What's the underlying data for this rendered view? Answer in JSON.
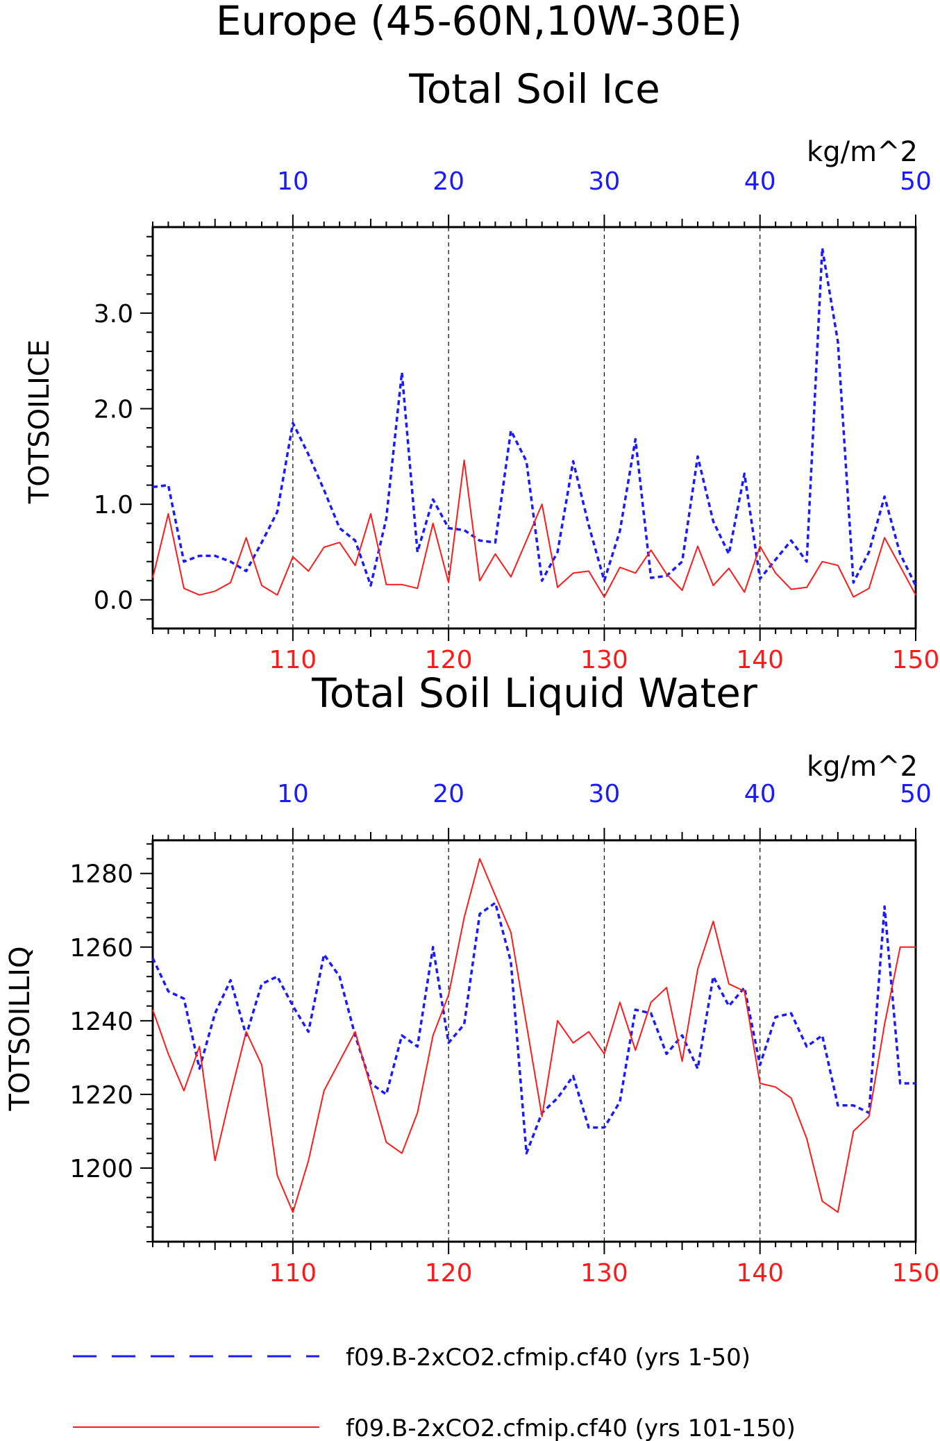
{
  "title_line1": "Europe (45-60N,10W-30E)",
  "colors": {
    "blue": "#1a1aff",
    "red": "#ff1a1a",
    "black": "#000000"
  },
  "legend": [
    {
      "label": "f09.B-2xCO2.cfmip.cf40 (yrs 1-50)",
      "color": "#1a1aff",
      "dash": "dashed"
    },
    {
      "label": "f09.B-2xCO2.cfmip.cf40 (yrs 101-150)",
      "color": "#ff1a1a",
      "dash": "solid"
    }
  ],
  "chart_data": [
    {
      "type": "line",
      "title": "Total Soil Ice",
      "units": "kg/m^2",
      "ylabel": "TOTSOILICE",
      "ylim": [
        -0.3,
        3.9
      ],
      "yticks": [
        "0.0",
        "1.0",
        "2.0",
        "3.0"
      ],
      "top_axis": {
        "range": [
          1,
          50
        ],
        "ticks": [
          "10",
          "20",
          "30",
          "40",
          "50"
        ]
      },
      "bottom_axis": {
        "range": [
          101,
          150
        ],
        "ticks": [
          "110",
          "120",
          "130",
          "140",
          "150"
        ]
      },
      "grid": "dashed vertical at 10,20,30,40",
      "series": [
        {
          "axis": "top",
          "x": [
            1,
            2,
            3,
            4,
            5,
            6,
            7,
            8,
            9,
            10,
            11,
            12,
            13,
            14,
            15,
            16,
            17,
            18,
            19,
            20,
            21,
            22,
            23,
            24,
            25,
            26,
            27,
            28,
            29,
            30,
            31,
            32,
            33,
            34,
            35,
            36,
            37,
            38,
            39,
            40,
            41,
            42,
            43,
            44,
            45,
            46,
            47,
            48,
            49,
            50
          ],
          "values": [
            1.18,
            1.2,
            0.4,
            0.46,
            0.46,
            0.4,
            0.3,
            0.6,
            0.92,
            1.85,
            1.52,
            1.15,
            0.75,
            0.62,
            0.15,
            0.85,
            2.38,
            0.5,
            1.05,
            0.75,
            0.73,
            0.62,
            0.6,
            1.77,
            1.45,
            0.2,
            0.5,
            1.45,
            0.78,
            0.2,
            0.72,
            1.68,
            0.23,
            0.25,
            0.4,
            1.5,
            0.82,
            0.48,
            1.32,
            0.22,
            0.42,
            0.62,
            0.4,
            3.68,
            2.7,
            0.18,
            0.5,
            1.08,
            0.48,
            0.15
          ]
        },
        {
          "axis": "bottom",
          "x": [
            101,
            102,
            103,
            104,
            105,
            106,
            107,
            108,
            109,
            110,
            111,
            112,
            113,
            114,
            115,
            116,
            117,
            118,
            119,
            120,
            121,
            122,
            123,
            124,
            125,
            126,
            127,
            128,
            129,
            130,
            131,
            132,
            133,
            134,
            135,
            136,
            137,
            138,
            139,
            140,
            141,
            142,
            143,
            144,
            145,
            146,
            147,
            148,
            149,
            150
          ],
          "values": [
            0.23,
            0.9,
            0.12,
            0.05,
            0.09,
            0.18,
            0.65,
            0.15,
            0.05,
            0.45,
            0.3,
            0.55,
            0.6,
            0.36,
            0.9,
            0.16,
            0.16,
            0.12,
            0.8,
            0.18,
            1.46,
            0.2,
            0.48,
            0.24,
            0.62,
            1.0,
            0.13,
            0.28,
            0.3,
            0.03,
            0.34,
            0.28,
            0.52,
            0.27,
            0.1,
            0.56,
            0.15,
            0.33,
            0.08,
            0.56,
            0.28,
            0.11,
            0.13,
            0.4,
            0.36,
            0.03,
            0.12,
            0.65,
            0.35,
            0.05
          ]
        }
      ]
    },
    {
      "type": "line",
      "title": "Total Soil Liquid Water",
      "units": "kg/m^2",
      "ylabel": "TOTSOILLIQ",
      "ylim": [
        1180,
        1289
      ],
      "yticks": [
        "1200",
        "1220",
        "1240",
        "1260",
        "1280"
      ],
      "top_axis": {
        "range": [
          1,
          50
        ],
        "ticks": [
          "10",
          "20",
          "30",
          "40",
          "50"
        ]
      },
      "bottom_axis": {
        "range": [
          101,
          150
        ],
        "ticks": [
          "110",
          "120",
          "130",
          "140",
          "150"
        ]
      },
      "grid": "dashed vertical at 10,20,30,40",
      "series": [
        {
          "axis": "top",
          "x": [
            1,
            2,
            3,
            4,
            5,
            6,
            7,
            8,
            9,
            10,
            11,
            12,
            13,
            14,
            15,
            16,
            17,
            18,
            19,
            20,
            21,
            22,
            23,
            24,
            25,
            26,
            27,
            28,
            29,
            30,
            31,
            32,
            33,
            34,
            35,
            36,
            37,
            38,
            39,
            40,
            41,
            42,
            43,
            44,
            45,
            46,
            47,
            48,
            49,
            50
          ],
          "values": [
            1257,
            1248,
            1246,
            1227,
            1242,
            1251,
            1236,
            1250,
            1252,
            1244,
            1237,
            1258,
            1252,
            1236,
            1223,
            1220,
            1236,
            1233,
            1260,
            1234,
            1239,
            1269,
            1272,
            1256,
            1204,
            1215,
            1219,
            1225,
            1211,
            1211,
            1218,
            1243,
            1242,
            1231,
            1236,
            1227,
            1252,
            1244,
            1249,
            1228,
            1241,
            1242,
            1233,
            1236,
            1217,
            1217,
            1215,
            1271,
            1223,
            1223
          ]
        },
        {
          "axis": "bottom",
          "x": [
            101,
            102,
            103,
            104,
            105,
            106,
            107,
            108,
            109,
            110,
            111,
            112,
            113,
            114,
            115,
            116,
            117,
            118,
            119,
            120,
            121,
            122,
            123,
            124,
            125,
            126,
            127,
            128,
            129,
            130,
            131,
            132,
            133,
            134,
            135,
            136,
            137,
            138,
            139,
            140,
            141,
            142,
            143,
            144,
            145,
            146,
            147,
            148,
            149,
            150
          ],
          "values": [
            1243,
            1231,
            1221,
            1233,
            1202,
            1220,
            1237,
            1228,
            1198,
            1188,
            1202,
            1221,
            1229,
            1237,
            1222,
            1207,
            1204,
            1215,
            1236,
            1247,
            1268,
            1284,
            1274,
            1264,
            1239,
            1214,
            1240,
            1234,
            1237,
            1231,
            1245,
            1232,
            1245,
            1249,
            1229,
            1254,
            1267,
            1250,
            1248,
            1223,
            1222,
            1219,
            1208,
            1191,
            1188,
            1210,
            1214,
            1239,
            1260,
            1260
          ]
        }
      ]
    }
  ]
}
